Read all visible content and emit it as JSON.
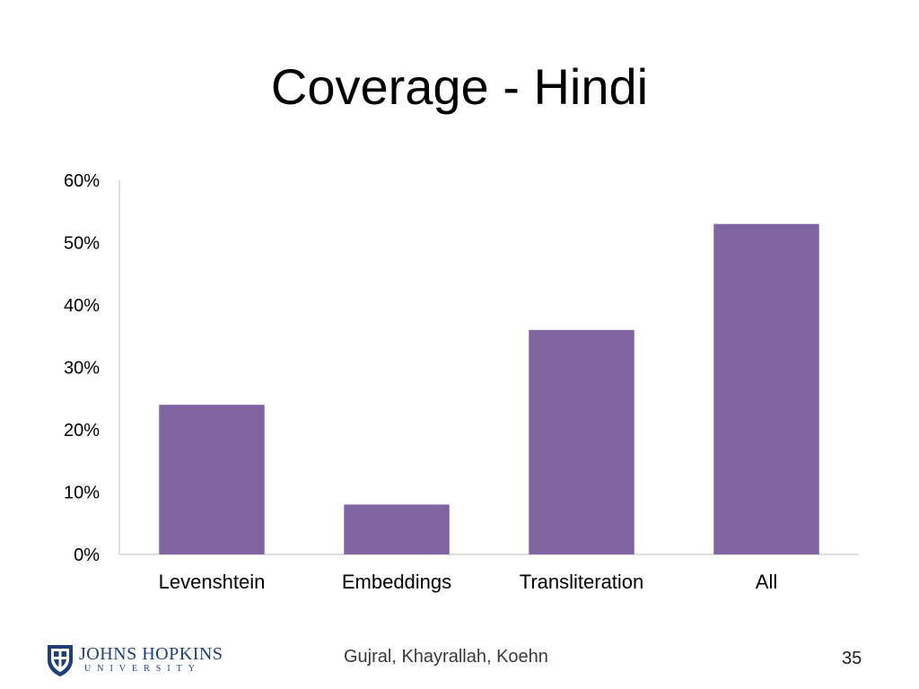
{
  "slide": {
    "title": "Coverage - Hindi",
    "footer_authors": "Gujral, Khayrallah, Koehn",
    "page_number": "35",
    "logo": {
      "name": "JOHNS HOPKINS",
      "subtitle": "UNIVERSITY",
      "color": "#1f3f7a"
    }
  },
  "chart_data": {
    "type": "bar",
    "title": "",
    "xlabel": "",
    "ylabel": "",
    "categories": [
      "Levenshtein",
      "Embeddings",
      "Transliteration",
      "All"
    ],
    "series": [
      {
        "values": [
          0.24,
          0.08,
          0.36,
          0.53
        ],
        "color": "#8064a2"
      }
    ],
    "ylim": [
      0,
      0.6
    ],
    "yticks": [
      0,
      0.1,
      0.2,
      0.3,
      0.4,
      0.5,
      0.6
    ],
    "ytick_labels": [
      "0%",
      "10%",
      "20%",
      "30%",
      "40%",
      "50%",
      "60%"
    ],
    "grid": false,
    "legend": "none"
  }
}
